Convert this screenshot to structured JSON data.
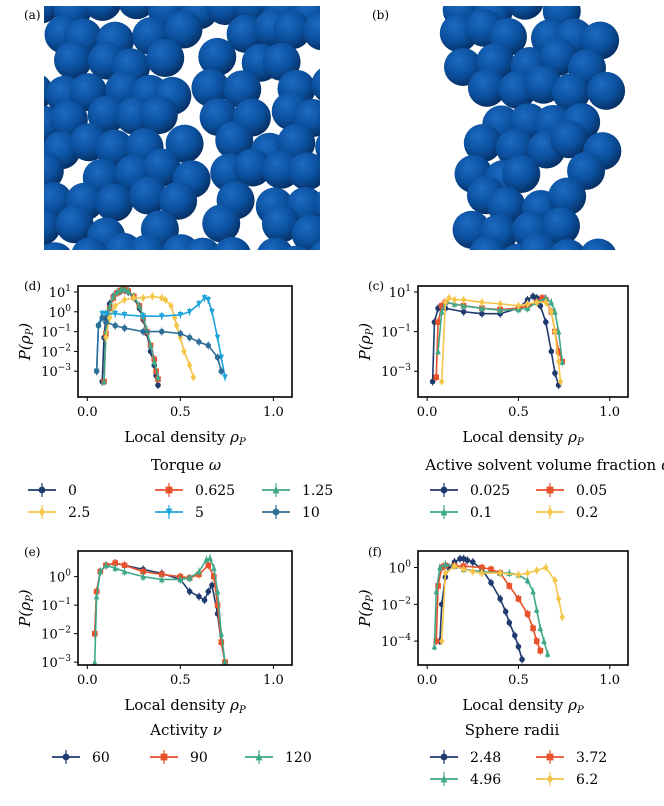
{
  "panels": {
    "a": {
      "letter": "(a)"
    },
    "b": {
      "letter": "(b)"
    }
  },
  "colors": {
    "sphere": "#0b4f9c",
    "sphere_dark": "#062f63",
    "navy": "#1f3a6e",
    "red": "#e8512a",
    "teal": "#3fa889",
    "yellow": "#f5c54a",
    "cyan": "#1ea4dc",
    "steel": "#2f6f98"
  },
  "chart_data": [
    {
      "id": "d",
      "letter": "(d)",
      "type": "line",
      "yscale": "log",
      "xlim": [
        -0.05,
        1.1
      ],
      "ylim_exp": [
        -4.3,
        1.3
      ],
      "xticks": [
        "0.0",
        "0.5",
        "1.0"
      ],
      "yticks": [
        "10^1",
        "10^0",
        "10^-1",
        "10^-2",
        "10^-3"
      ],
      "xlabel": "Local density ρ_P",
      "ylabel": "P(ρ_P)",
      "legend_title": "Torque ω",
      "series": [
        {
          "name": "0",
          "color": "#1f3a6e",
          "marker": "circle",
          "x": [
            0.08,
            0.09,
            0.1,
            0.12,
            0.14,
            0.16,
            0.18,
            0.2,
            0.22,
            0.25,
            0.28,
            0.3,
            0.32,
            0.34,
            0.36,
            0.37,
            0.38
          ],
          "y": [
            0.0003,
            0.05,
            0.5,
            2.5,
            6,
            9,
            11,
            12,
            10,
            5,
            1.5,
            0.4,
            0.08,
            0.01,
            0.002,
            0.0006,
            0.0002
          ]
        },
        {
          "name": "0.625",
          "color": "#e8512a",
          "marker": "square",
          "x": [
            0.09,
            0.1,
            0.12,
            0.14,
            0.16,
            0.18,
            0.2,
            0.22,
            0.25,
            0.28,
            0.3,
            0.32,
            0.34,
            0.36,
            0.37,
            0.38
          ],
          "y": [
            0.0003,
            0.08,
            1.5,
            5,
            9,
            12,
            13,
            11,
            6,
            2,
            0.5,
            0.1,
            0.02,
            0.004,
            0.001,
            0.0004
          ]
        },
        {
          "name": "1.25",
          "color": "#3fa889",
          "marker": "triangle",
          "x": [
            0.09,
            0.1,
            0.12,
            0.14,
            0.16,
            0.18,
            0.2,
            0.22,
            0.25,
            0.28,
            0.3,
            0.32,
            0.34,
            0.36,
            0.38
          ],
          "y": [
            0.0003,
            0.1,
            1.8,
            6,
            10,
            13,
            14,
            11,
            6,
            2,
            0.6,
            0.12,
            0.02,
            0.003,
            0.0005
          ]
        },
        {
          "name": "2.5",
          "color": "#f5c54a",
          "marker": "diamond",
          "x": [
            0.1,
            0.12,
            0.15,
            0.2,
            0.25,
            0.3,
            0.35,
            0.4,
            0.42,
            0.45,
            0.47,
            0.48,
            0.5,
            0.52,
            0.55,
            0.57
          ],
          "y": [
            0.05,
            0.5,
            2,
            4,
            5,
            5,
            6,
            5,
            4,
            2,
            0.5,
            0.2,
            0.05,
            0.01,
            0.002,
            0.0005
          ]
        },
        {
          "name": "5",
          "color": "#1ea4dc",
          "marker": "tri_down",
          "x": [
            0.05,
            0.06,
            0.08,
            0.1,
            0.15,
            0.2,
            0.3,
            0.4,
            0.5,
            0.55,
            0.6,
            0.63,
            0.65,
            0.67,
            0.7,
            0.72,
            0.74
          ],
          "y": [
            0.001,
            0.2,
            0.8,
            0.8,
            0.8,
            0.7,
            0.6,
            0.6,
            0.7,
            1,
            2.5,
            5,
            4,
            1,
            0.05,
            0.005,
            0.0005
          ]
        },
        {
          "name": "10",
          "color": "#2f6f98",
          "marker": "circle",
          "x": [
            0.05,
            0.06,
            0.08,
            0.1,
            0.15,
            0.2,
            0.3,
            0.4,
            0.5,
            0.55,
            0.6,
            0.65,
            0.7,
            0.72
          ],
          "y": [
            0.001,
            0.2,
            0.5,
            0.3,
            0.2,
            0.15,
            0.1,
            0.1,
            0.08,
            0.05,
            0.03,
            0.02,
            0.005,
            0.001
          ]
        }
      ]
    },
    {
      "id": "c",
      "letter": "(c)",
      "type": "line",
      "yscale": "log",
      "xlim": [
        -0.05,
        1.1
      ],
      "ylim_exp": [
        -4.3,
        1.3
      ],
      "xticks": [
        "0.0",
        "0.5",
        "1.0"
      ],
      "yticks": [
        "10^1",
        "10^-1",
        "10^-3"
      ],
      "xlabel": "Local density ρ_P",
      "ylabel": "P(ρ_P)",
      "legend_title": "Active solvent volume fraction φ_A",
      "series": [
        {
          "name": "0.025",
          "color": "#1f3a6e",
          "marker": "circle",
          "x": [
            0.03,
            0.04,
            0.06,
            0.1,
            0.2,
            0.3,
            0.4,
            0.5,
            0.55,
            0.58,
            0.6,
            0.62,
            0.65,
            0.68,
            0.7,
            0.72
          ],
          "y": [
            0.0003,
            0.3,
            1.5,
            1.5,
            1,
            0.8,
            0.8,
            1.5,
            4,
            6,
            5,
            2,
            0.3,
            0.01,
            0.0008,
            0.0002
          ]
        },
        {
          "name": "0.05",
          "color": "#e8512a",
          "marker": "square",
          "x": [
            0.05,
            0.06,
            0.08,
            0.1,
            0.2,
            0.3,
            0.4,
            0.5,
            0.55,
            0.6,
            0.63,
            0.65,
            0.68,
            0.7,
            0.72,
            0.74
          ],
          "y": [
            0.0005,
            0.3,
            2,
            3,
            2,
            1.5,
            1.3,
            1.5,
            2,
            3,
            5,
            4,
            1,
            0.1,
            0.01,
            0.003
          ]
        },
        {
          "name": "0.1",
          "color": "#3fa889",
          "marker": "triangle",
          "x": [
            0.06,
            0.08,
            0.1,
            0.15,
            0.2,
            0.3,
            0.4,
            0.5,
            0.55,
            0.6,
            0.65,
            0.68,
            0.7,
            0.72,
            0.74
          ],
          "y": [
            0.01,
            1,
            3,
            2.5,
            2,
            1.5,
            1.2,
            1.3,
            1.5,
            3,
            5,
            3,
            1,
            0.1,
            0.003
          ]
        },
        {
          "name": "0.2",
          "color": "#f5c54a",
          "marker": "diamond",
          "x": [
            0.08,
            0.1,
            0.12,
            0.15,
            0.2,
            0.3,
            0.4,
            0.5,
            0.55,
            0.6,
            0.65,
            0.68,
            0.7,
            0.72,
            0.73
          ],
          "y": [
            0.0003,
            3,
            5,
            4,
            4,
            3,
            2.5,
            2,
            2.5,
            3,
            3,
            1,
            0.1,
            0.003,
            0.0003
          ]
        }
      ]
    },
    {
      "id": "e",
      "letter": "(e)",
      "type": "line",
      "yscale": "log",
      "xlim": [
        -0.05,
        1.1
      ],
      "ylim_exp": [
        -3.1,
        0.9
      ],
      "xticks": [
        "0.0",
        "0.5",
        "1.0"
      ],
      "yticks": [
        "10^0",
        "10^-1",
        "10^-2",
        "10^-3"
      ],
      "xlabel": "Local density ρ_P",
      "ylabel": "P(ρ_P)",
      "legend_title": "Activity ν",
      "series": [
        {
          "name": "60",
          "color": "#1f3a6e",
          "marker": "circle",
          "x": [
            0.04,
            0.05,
            0.07,
            0.1,
            0.15,
            0.2,
            0.3,
            0.4,
            0.5,
            0.55,
            0.6,
            0.63,
            0.65,
            0.67,
            0.7,
            0.72,
            0.74
          ],
          "y": [
            0.01,
            0.3,
            1.5,
            2.5,
            3,
            2.5,
            1.8,
            1.3,
            0.8,
            0.3,
            0.2,
            0.15,
            0.3,
            0.5,
            0.05,
            0.005,
            0.001
          ]
        },
        {
          "name": "90",
          "color": "#e8512a",
          "marker": "square",
          "x": [
            0.04,
            0.05,
            0.07,
            0.1,
            0.15,
            0.2,
            0.3,
            0.4,
            0.5,
            0.55,
            0.6,
            0.65,
            0.68,
            0.7,
            0.72,
            0.74
          ],
          "y": [
            0.01,
            0.3,
            1.5,
            2.5,
            3,
            2.5,
            1.5,
            1.2,
            1,
            0.9,
            1.2,
            2.5,
            1,
            0.1,
            0.005,
            0.001
          ]
        },
        {
          "name": "120",
          "color": "#3fa889",
          "marker": "triangle",
          "x": [
            0.04,
            0.05,
            0.07,
            0.1,
            0.15,
            0.2,
            0.3,
            0.4,
            0.5,
            0.55,
            0.6,
            0.64,
            0.66,
            0.68,
            0.7,
            0.72,
            0.74
          ],
          "y": [
            0.001,
            0.2,
            1.5,
            2.5,
            2,
            1.5,
            1,
            0.8,
            0.8,
            0.9,
            1.5,
            4,
            4.5,
            2,
            0.3,
            0.01,
            0.001
          ]
        }
      ]
    },
    {
      "id": "f",
      "letter": "(f)",
      "type": "line",
      "yscale": "log",
      "xlim": [
        -0.05,
        1.1
      ],
      "ylim_exp": [
        -5.3,
        0.9
      ],
      "xticks": [
        "0.0",
        "0.5",
        "1.0"
      ],
      "yticks": [
        "10^0",
        "10^-2",
        "10^-4"
      ],
      "xlabel": "Local density ρ_P",
      "ylabel": "P(ρ_P)",
      "legend_title": "Sphere radii",
      "series": [
        {
          "name": "2.48",
          "color": "#1f3a6e",
          "marker": "circle",
          "x": [
            0.07,
            0.08,
            0.1,
            0.12,
            0.15,
            0.18,
            0.2,
            0.22,
            0.25,
            0.3,
            0.35,
            0.4,
            0.43,
            0.45,
            0.48,
            0.5,
            0.52
          ],
          "y": [
            0.0001,
            0.01,
            0.3,
            1,
            2,
            3,
            3,
            2.5,
            2,
            0.8,
            0.15,
            0.02,
            0.004,
            0.001,
            0.0002,
            5e-05,
            1e-05
          ]
        },
        {
          "name": "3.72",
          "color": "#e8512a",
          "marker": "square",
          "x": [
            0.05,
            0.06,
            0.08,
            0.1,
            0.15,
            0.2,
            0.3,
            0.35,
            0.4,
            0.45,
            0.5,
            0.55,
            0.58,
            0.6,
            0.62
          ],
          "y": [
            0.0001,
            0.1,
            1,
            1.3,
            1.2,
            1.2,
            1,
            0.8,
            0.5,
            0.1,
            0.02,
            0.003,
            0.0005,
            0.0001,
            3e-05
          ]
        },
        {
          "name": "4.96",
          "color": "#3fa889",
          "marker": "triangle",
          "x": [
            0.04,
            0.05,
            0.07,
            0.1,
            0.15,
            0.2,
            0.3,
            0.4,
            0.45,
            0.5,
            0.55,
            0.58,
            0.6,
            0.62,
            0.64,
            0.66
          ],
          "y": [
            5e-05,
            0.05,
            1,
            1.5,
            1.2,
            0.8,
            0.6,
            0.5,
            0.5,
            0.4,
            0.2,
            0.05,
            0.005,
            0.0005,
            0.0001,
            2e-05
          ]
        },
        {
          "name": "6.2",
          "color": "#f5c54a",
          "marker": "diamond",
          "x": [
            0.08,
            0.1,
            0.15,
            0.2,
            0.25,
            0.3,
            0.4,
            0.5,
            0.55,
            0.6,
            0.65,
            0.7,
            0.72,
            0.74
          ],
          "y": [
            0.0001,
            0.5,
            1.2,
            0.8,
            0.6,
            0.5,
            0.5,
            0.4,
            0.5,
            0.7,
            1,
            0.2,
            0.02,
            0.002
          ]
        }
      ]
    }
  ]
}
